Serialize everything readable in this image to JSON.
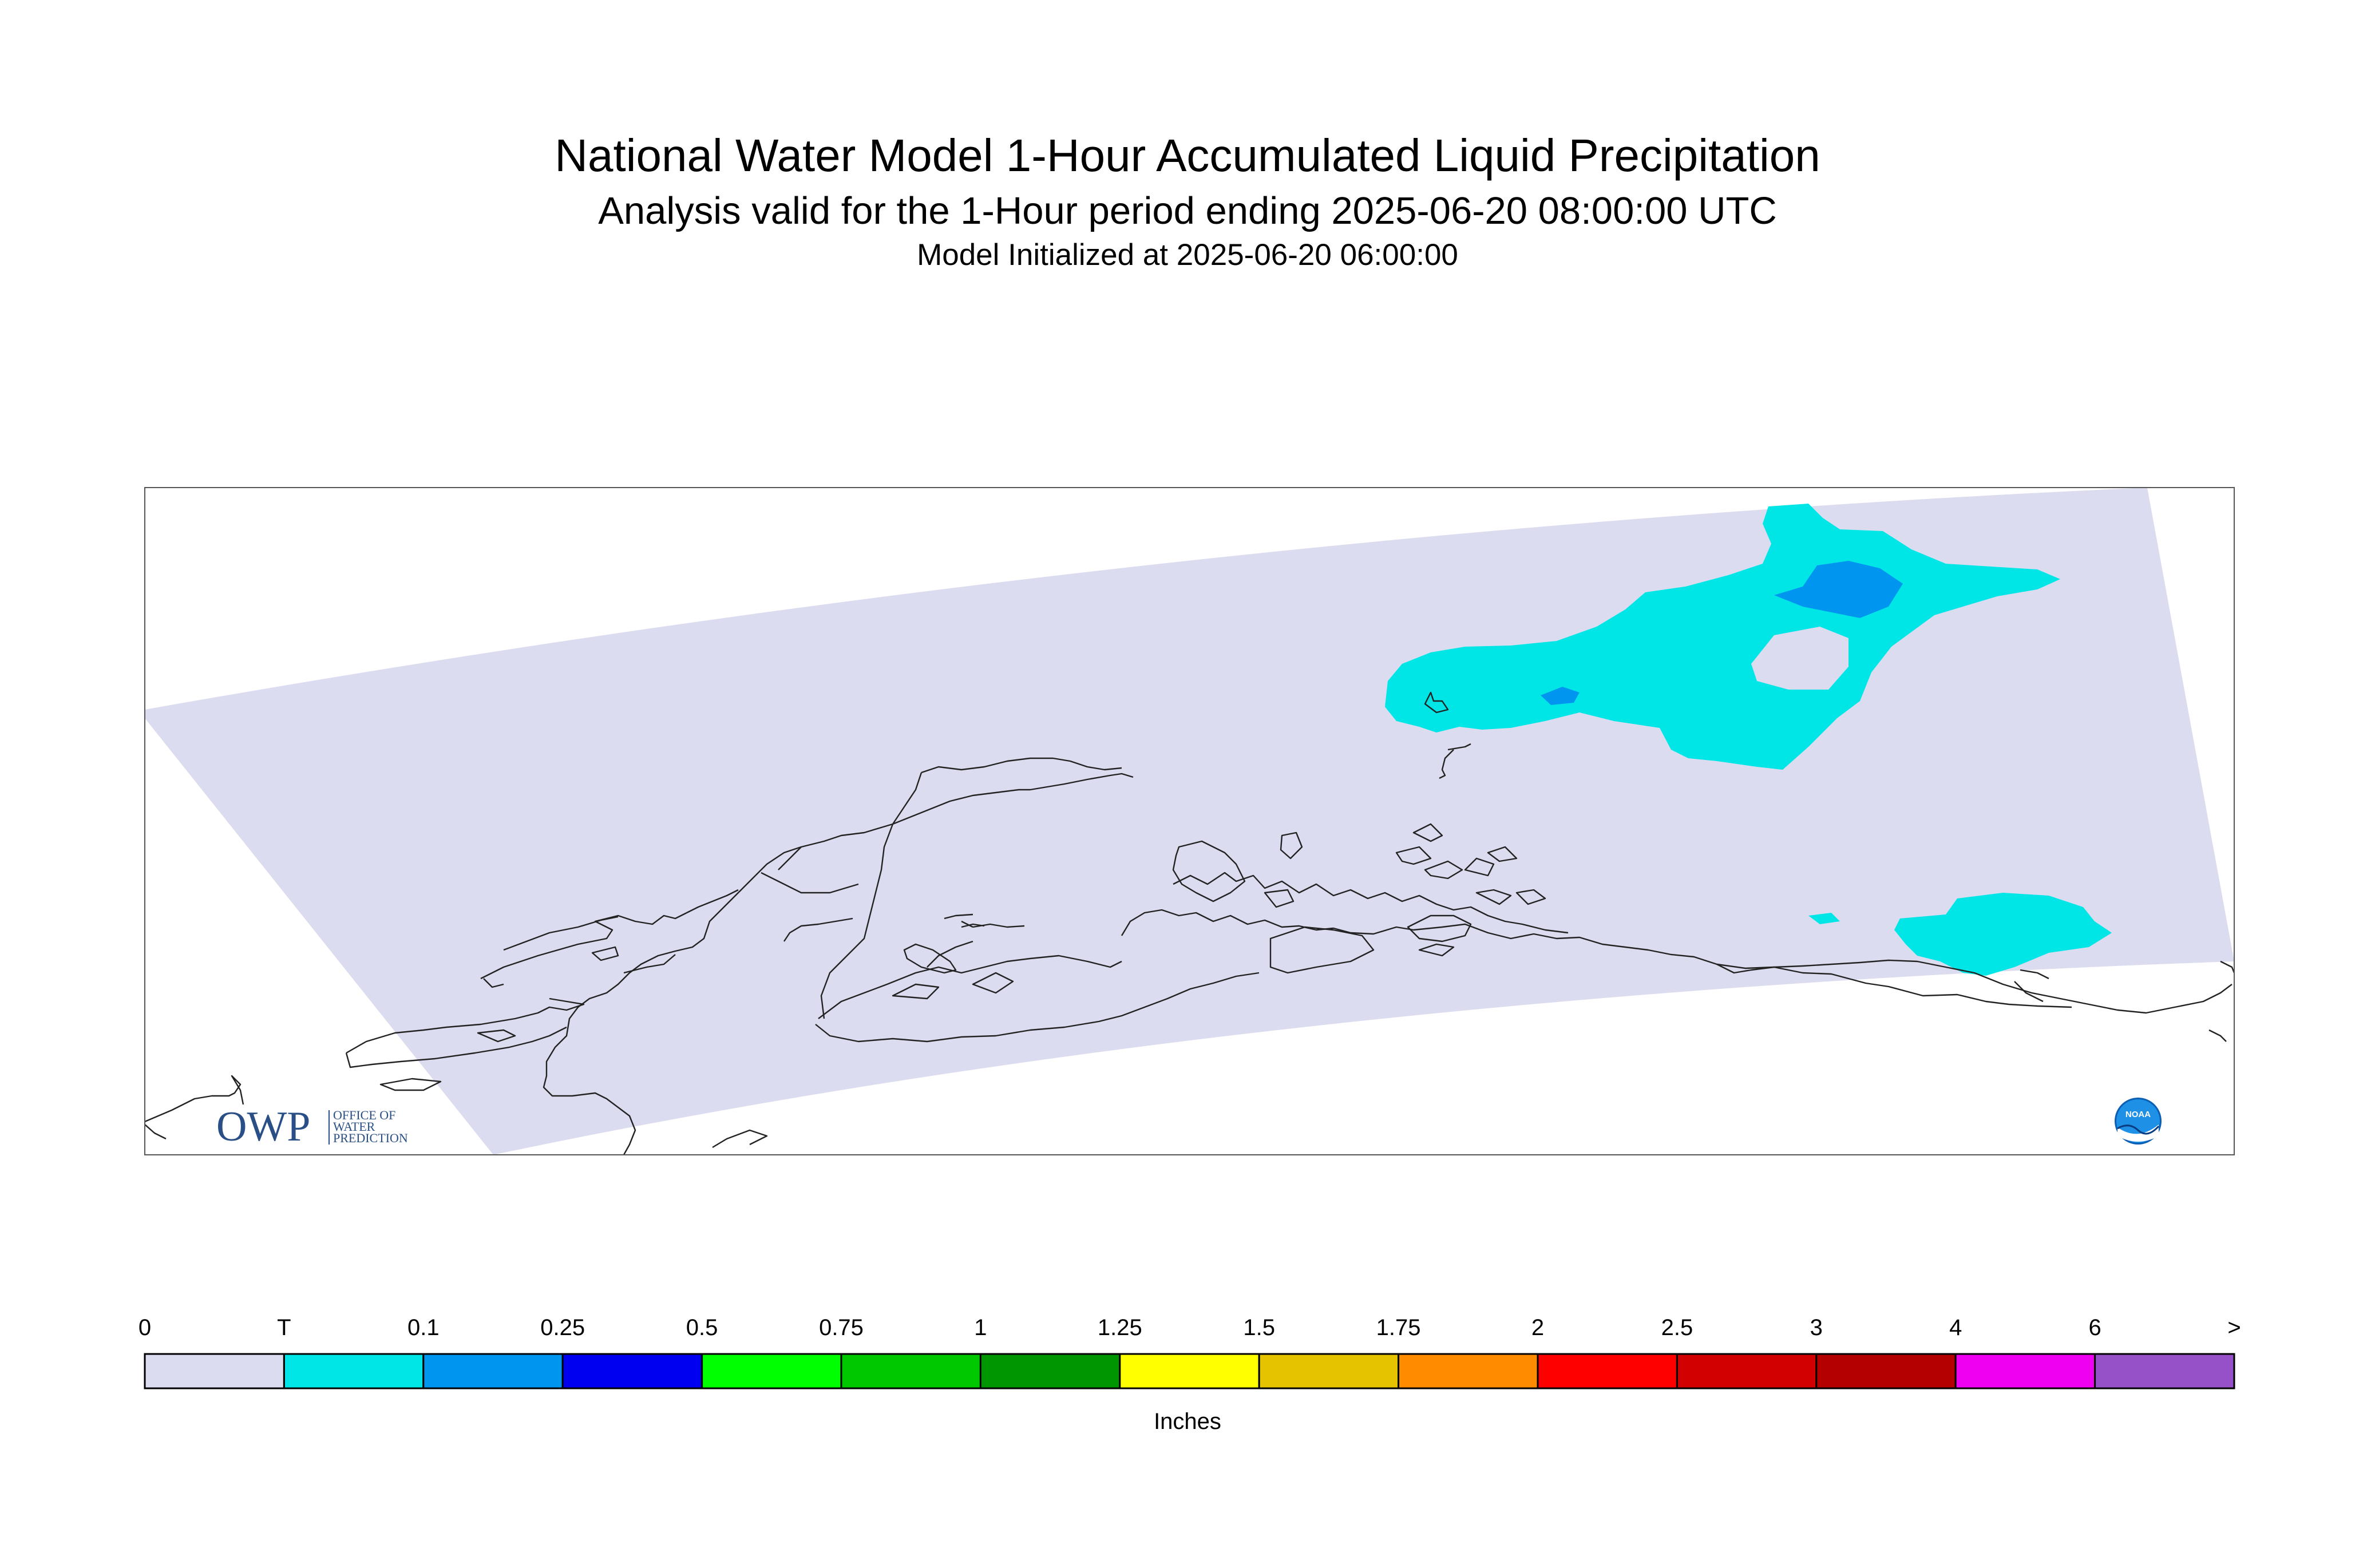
{
  "header": {
    "title": "National Water Model 1-Hour Accumulated Liquid Precipitation",
    "subtitle": "Analysis valid for the 1-Hour period ending 2025-06-20 08:00:00 UTC",
    "init_line": "Model Initialized at 2025-06-20 06:00:00"
  },
  "map": {
    "domain_color": "#dcdcf0",
    "coastline_color": "#222222",
    "precip_areas": [
      {
        "category": "T",
        "color": "#00e6e6",
        "location": "northeast interior"
      },
      {
        "category": "0.1",
        "color": "#0096f0",
        "location": "northeast interior, small cores"
      },
      {
        "category": "T",
        "color": "#00e6e6",
        "location": "southeast near coast"
      }
    ]
  },
  "logos": {
    "owp": {
      "letters": "OWP",
      "line1": "OFFICE OF",
      "line2": "WATER",
      "line3": "PREDICTION"
    },
    "noaa": {
      "letters": "NOAA",
      "name": "noaa-logo"
    }
  },
  "colorbar": {
    "units": "Inches",
    "labels": [
      "0",
      "T",
      "0.1",
      "0.25",
      "0.5",
      "0.75",
      "1",
      "1.25",
      "1.5",
      "1.75",
      "2",
      "2.5",
      "3",
      "4",
      "6",
      ">"
    ],
    "colors": [
      "#dcdcf0",
      "#00e6e6",
      "#0096f0",
      "#0000f0",
      "#00ff00",
      "#00c800",
      "#009600",
      "#ffff00",
      "#e6c300",
      "#ff8c00",
      "#ff0000",
      "#d20000",
      "#b40000",
      "#f000f0",
      "#9650c8"
    ]
  }
}
